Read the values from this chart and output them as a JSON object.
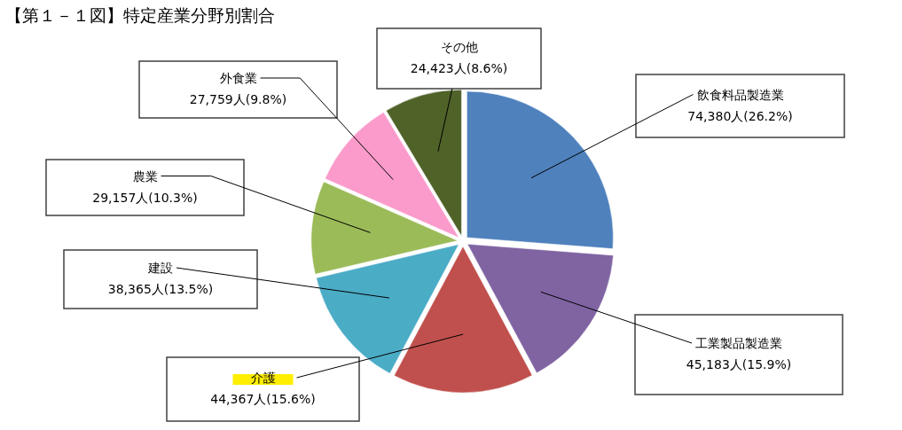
{
  "chart_data": {
    "type": "pie",
    "title": "【第１－１図】特定産業分野別割合",
    "categories": [
      "飲食料品製造業",
      "工業製品製造業",
      "介護",
      "建設",
      "農業",
      "外食業",
      "その他"
    ],
    "values": [
      74380,
      45183,
      44367,
      38365,
      29157,
      27759,
      24423
    ],
    "colors": [
      "#4f81bd",
      "#8064a2",
      "#c0504d",
      "#4bacc6",
      "#9bbb59",
      "#fb9bcb",
      "#4f6228"
    ],
    "value_labels": [
      "74,380人(26.2%)",
      "45,183人(15.9%)",
      "44,367人(15.6%)",
      "38,365人(13.5%)",
      "29,157人(10.3%)",
      "27,759人(9.8%)",
      "24,423人(8.6%)"
    ]
  }
}
